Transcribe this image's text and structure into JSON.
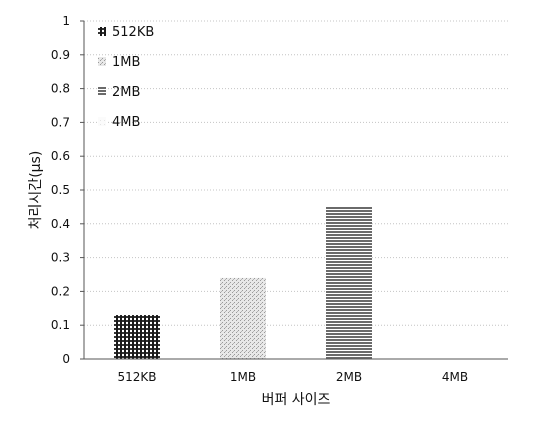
{
  "chart_data": {
    "type": "bar",
    "title": "",
    "xlabel": "버퍼 사이즈",
    "ylabel": "처리시간(μs)",
    "categories": [
      "512KB",
      "1MB",
      "2MB",
      "4MB"
    ],
    "values": [
      0.13,
      0.24,
      0.45,
      0.0
    ],
    "ylim": [
      0,
      1
    ],
    "yticks": [
      "0",
      "0.1",
      "0.2",
      "0.3",
      "0.4",
      "0.5",
      "0.6",
      "0.7",
      "0.8",
      "0.9",
      "1"
    ],
    "grid": true,
    "legend": {
      "placement": "top-left",
      "entries": [
        "512KB",
        "1MB",
        "2MB",
        "4MB"
      ]
    },
    "colors": [
      "#1a1a1a",
      "#c8c8c8",
      "#7a7a7a",
      "#f2f2f2"
    ]
  }
}
